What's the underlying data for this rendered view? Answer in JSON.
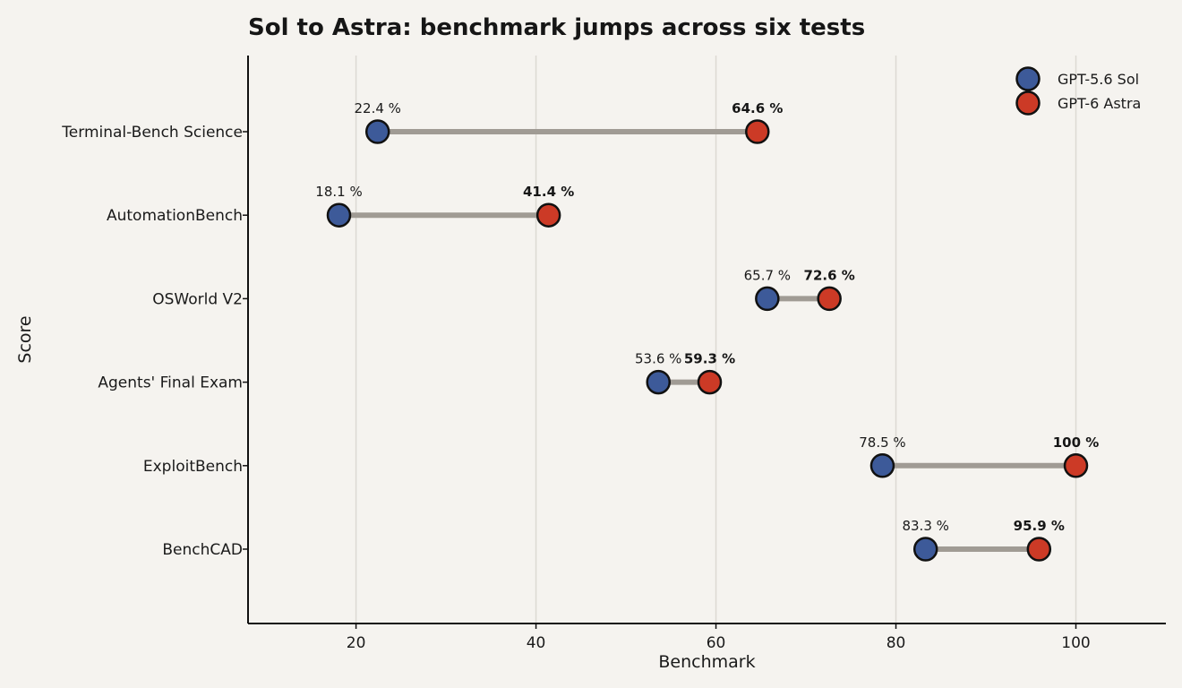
{
  "chart_data": {
    "type": "dumbbell",
    "title": "Sol to Astra: benchmark jumps across six tests",
    "xlabel": "Benchmark",
    "ylabel": "Score",
    "xlim": [
      8,
      110
    ],
    "xticks": [
      20,
      40,
      60,
      80,
      100
    ],
    "grid": "vertical",
    "legend_position": "top-right",
    "value_suffix": " %",
    "categories": [
      "Terminal-Bench Science",
      "AutomationBench",
      "OSWorld V2",
      "Agents' Final Exam",
      "ExploitBench",
      "BenchCAD"
    ],
    "series": [
      {
        "name": "GPT-5.6 Sol",
        "color": "#3d5a99",
        "values": [
          22.4,
          18.1,
          65.7,
          53.6,
          78.5,
          83.3
        ]
      },
      {
        "name": "GPT-6 Astra",
        "color": "#cc3a26",
        "values": [
          64.6,
          41.4,
          72.6,
          59.3,
          100,
          95.9
        ]
      }
    ],
    "connector_color": "#a09b94"
  }
}
